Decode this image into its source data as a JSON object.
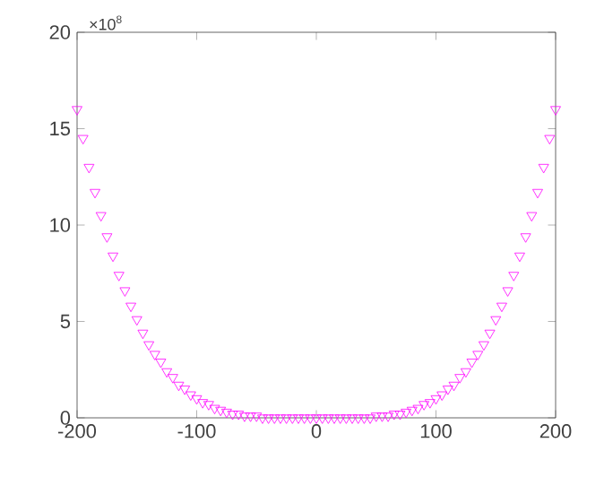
{
  "chart_data": {
    "type": "scatter",
    "marker": "triangle",
    "grid": false,
    "xlim": [
      -200,
      200
    ],
    "ylim": [
      0,
      20
    ],
    "xticks": [
      -200,
      -100,
      0,
      100,
      200
    ],
    "yticks": [
      0,
      5,
      10,
      15,
      20
    ],
    "annotations": [
      "×10$^{8}$"
    ],
    "series": [
      {
        "color": "#ff00ff",
        "x": [
          -200,
          -195,
          -190,
          -185,
          -180,
          -175,
          -170,
          -165,
          -160,
          -155,
          -150,
          -145,
          -140,
          -135,
          -130,
          -125,
          -120,
          -115,
          -110,
          -105,
          -100,
          -95,
          -90,
          -85,
          -80,
          -75,
          -70,
          -65,
          -60,
          -55,
          -50,
          -45,
          -40,
          -35,
          -30,
          -25,
          -20,
          -15,
          -10,
          -5,
          0,
          5,
          10,
          15,
          20,
          25,
          30,
          35,
          40,
          45,
          50,
          55,
          60,
          65,
          70,
          75,
          80,
          85,
          90,
          95,
          100,
          105,
          110,
          115,
          120,
          125,
          130,
          135,
          140,
          145,
          150,
          155,
          160,
          165,
          170,
          175,
          180,
          185,
          190,
          195,
          200
        ],
        "values": [
          16,
          14.5,
          13,
          11.7,
          10.5,
          9.4,
          8.4,
          7.4,
          6.6,
          5.8,
          5.1,
          4.4,
          3.8,
          3.3,
          2.9,
          2.4,
          2.1,
          1.7,
          1.5,
          1.2,
          1,
          0.8,
          0.7,
          0.5,
          0.4,
          0.3,
          0.2,
          0.2,
          0.1,
          0.1,
          0.1,
          0,
          0,
          0,
          0,
          0,
          0,
          0,
          0,
          0,
          0,
          0,
          0,
          0,
          0,
          0,
          0,
          0,
          0,
          0,
          0.1,
          0.1,
          0.1,
          0.2,
          0.2,
          0.3,
          0.4,
          0.5,
          0.7,
          0.8,
          1,
          1.2,
          1.5,
          1.7,
          2.1,
          2.4,
          2.9,
          3.3,
          3.8,
          4.4,
          5.1,
          5.8,
          6.6,
          7.4,
          8.4,
          9.4,
          10.5,
          11.7,
          13,
          14.5,
          16
        ]
      }
    ]
  }
}
